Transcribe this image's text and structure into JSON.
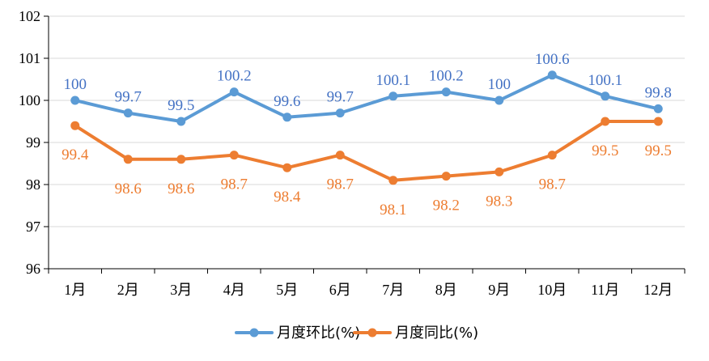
{
  "chart_data": {
    "type": "line",
    "categories": [
      "1月",
      "2月",
      "3月",
      "4月",
      "5月",
      "6月",
      "7月",
      "8月",
      "9月",
      "10月",
      "11月",
      "12月"
    ],
    "series": [
      {
        "name": "月度环比(%)",
        "color": "#5B9BD5",
        "values": [
          100,
          99.7,
          99.5,
          100.2,
          99.6,
          99.7,
          100.1,
          100.2,
          100,
          100.6,
          100.1,
          99.8
        ],
        "labels": [
          "100",
          "99.7",
          "99.5",
          "100.2",
          "99.6",
          "99.7",
          "100.1",
          "100.2",
          "100",
          "100.6",
          "100.1",
          "99.8"
        ],
        "label_color": "#4472C4",
        "label_position": "above"
      },
      {
        "name": "月度同比(%)",
        "color": "#ED7D31",
        "values": [
          99.4,
          98.6,
          98.6,
          98.7,
          98.4,
          98.7,
          98.1,
          98.2,
          98.3,
          98.7,
          99.5,
          99.5
        ],
        "labels": [
          "99.4",
          "98.6",
          "98.6",
          "98.7",
          "98.4",
          "98.7",
          "98.1",
          "98.2",
          "98.3",
          "98.7",
          "99.5",
          "99.5"
        ],
        "label_color": "#ED7D31",
        "label_position": "below"
      }
    ],
    "y_ticks": [
      "96",
      "97",
      "98",
      "99",
      "100",
      "101",
      "102"
    ],
    "ylim": [
      96,
      102
    ],
    "title": "",
    "xlabel": "",
    "ylabel": "",
    "grid": "horizontal",
    "legend": "bottom-center"
  }
}
